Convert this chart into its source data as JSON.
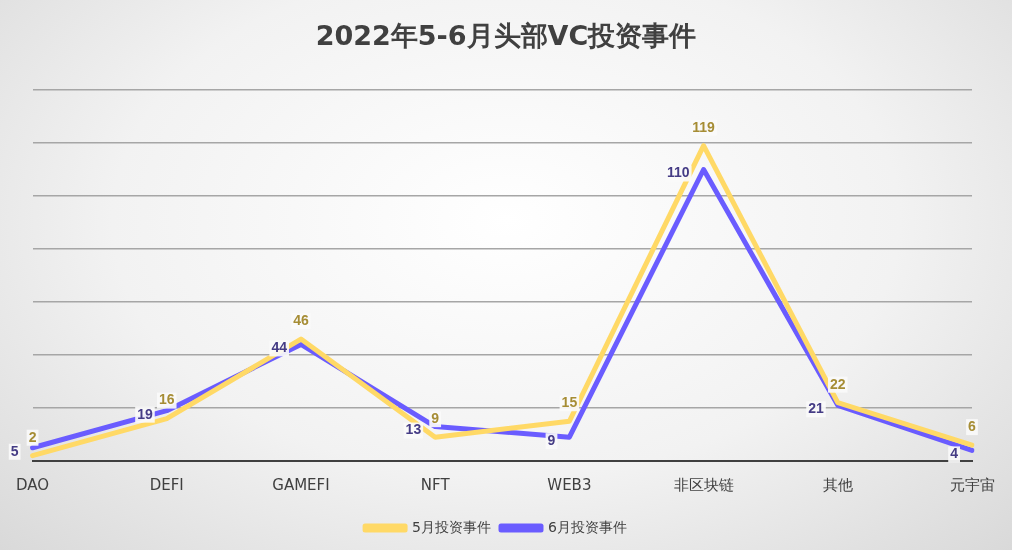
{
  "chart_data": {
    "type": "line",
    "title": "2022年5-6月头部VC投资事件",
    "categories": [
      "DAO",
      "DEFI",
      "GAMEFI",
      "NFT",
      "WEB3",
      "非区块链",
      "其他",
      "元宇宙"
    ],
    "series": [
      {
        "name": "5月投资事件",
        "color": "#ffd966",
        "values": [
          2,
          16,
          46,
          9,
          15,
          119,
          22,
          6
        ]
      },
      {
        "name": "6月投资事件",
        "color": "#6a5cff",
        "values": [
          5,
          19,
          44,
          13,
          9,
          110,
          21,
          4
        ]
      }
    ],
    "ylim": [
      0,
      140
    ],
    "yticks": [
      {
        "value": 0,
        "label": null
      },
      {
        "value": 20,
        "label": null
      },
      {
        "value": 40,
        "label": null
      },
      {
        "value": 60,
        "label": null
      },
      {
        "value": 80,
        "label": null
      },
      {
        "value": 100,
        "label": null
      },
      {
        "value": 120,
        "label": null
      },
      {
        "value": 140,
        "label": null
      }
    ],
    "grid": "y",
    "legend": "bottom",
    "tick_labels": "x",
    "marker": "none",
    "line_style": "solid",
    "data_labels": true
  }
}
